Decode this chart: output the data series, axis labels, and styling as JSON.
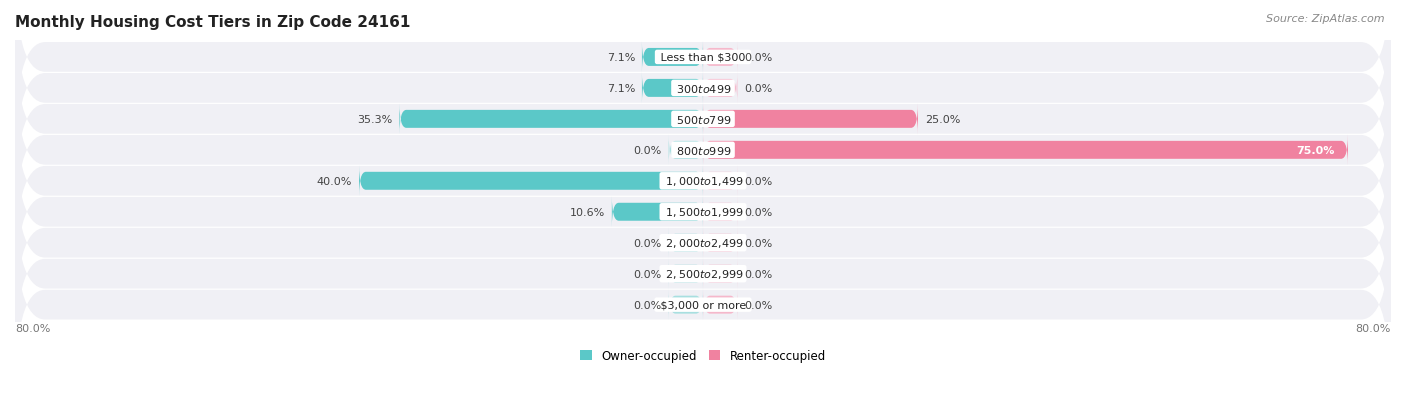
{
  "title": "Monthly Housing Cost Tiers in Zip Code 24161",
  "source": "Source: ZipAtlas.com",
  "categories": [
    "Less than $300",
    "$300 to $499",
    "$500 to $799",
    "$800 to $999",
    "$1,000 to $1,499",
    "$1,500 to $1,999",
    "$2,000 to $2,499",
    "$2,500 to $2,999",
    "$3,000 or more"
  ],
  "owner_values": [
    7.1,
    7.1,
    35.3,
    0.0,
    40.0,
    10.6,
    0.0,
    0.0,
    0.0
  ],
  "renter_values": [
    0.0,
    0.0,
    25.0,
    75.0,
    0.0,
    0.0,
    0.0,
    0.0,
    0.0
  ],
  "owner_color": "#5BC8C8",
  "renter_color": "#F082A0",
  "owner_color_light": "#A8DFE0",
  "renter_color_light": "#F5B8CB",
  "row_bg_odd": "#F4F4F4",
  "row_bg_even": "#EBEBEB",
  "axis_limit": 80.0,
  "stub_size": 4.0,
  "title_fontsize": 11,
  "source_fontsize": 8,
  "label_fontsize": 8,
  "pct_fontsize": 8,
  "bar_height": 0.58,
  "owner_label": "Owner-occupied",
  "renter_label": "Renter-occupied",
  "background_color": "#FFFFFF",
  "row_bg_color": "#F0F0F5"
}
